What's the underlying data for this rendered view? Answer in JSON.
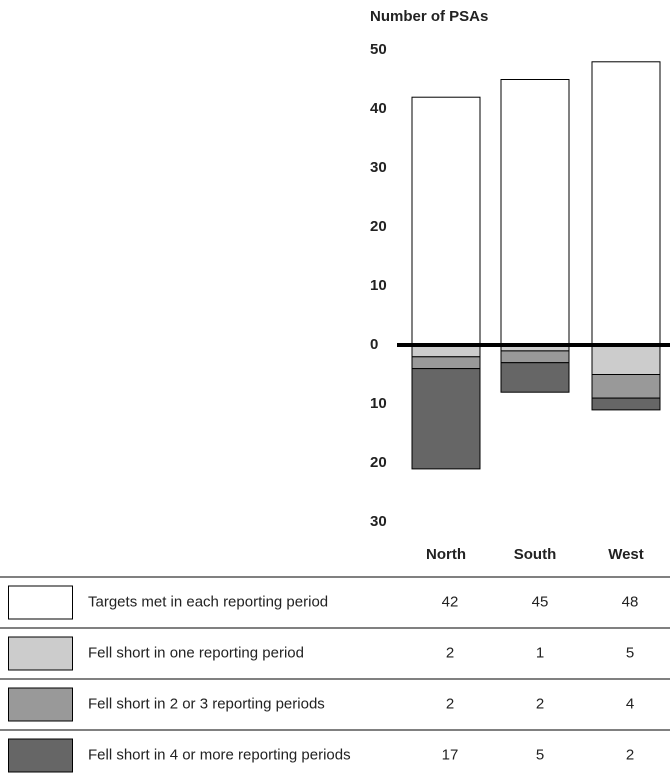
{
  "chart_data": {
    "type": "bar",
    "stacked": true,
    "ylabel": "Number of PSAs",
    "categories": [
      "North",
      "South",
      "West"
    ],
    "series": [
      {
        "name": "Targets met in each reporting period",
        "color": "#ffffff",
        "values": [
          42,
          45,
          48
        ]
      },
      {
        "name": "Fell short in one reporting period",
        "color": "#cccccc",
        "values": [
          -2,
          -1,
          -5
        ],
        "value_labels": [
          "2",
          "1",
          "5"
        ]
      },
      {
        "name": "Fell short in 2 or 3 reporting periods",
        "color": "#999999",
        "values": [
          -2,
          -2,
          -4
        ],
        "value_labels": [
          "2",
          "2",
          "4"
        ]
      },
      {
        "name": "Fell short in 4 or more reporting periods",
        "color": "#666666",
        "values": [
          -17,
          -5,
          -2
        ],
        "value_labels": [
          "17",
          "5",
          "2"
        ]
      }
    ],
    "ylim": [
      -30,
      50
    ],
    "yticks": [
      50,
      40,
      30,
      20,
      10,
      0,
      {
        "value": -10,
        "label": "10"
      },
      {
        "value": -20,
        "label": "20"
      },
      {
        "value": -30,
        "label": "30"
      }
    ],
    "grid": false
  }
}
